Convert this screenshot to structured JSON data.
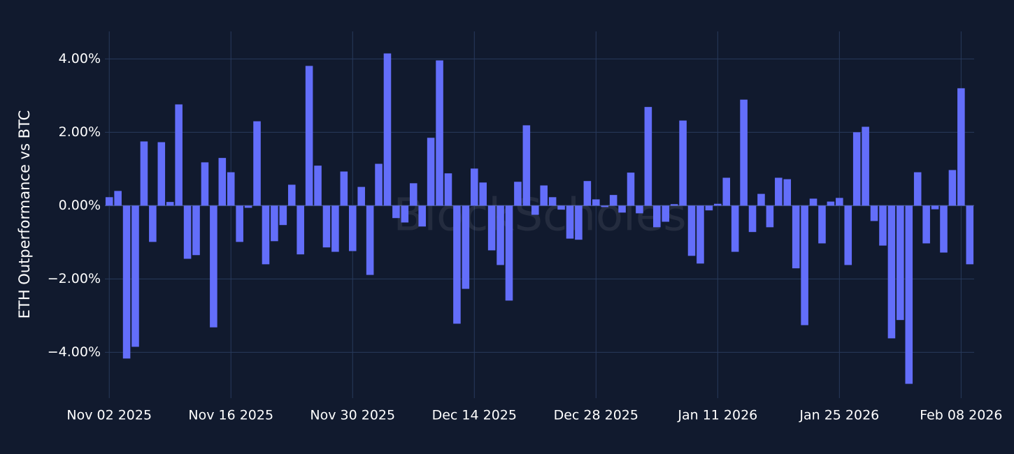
{
  "chart_data": {
    "type": "bar",
    "ylabel": "ETH Outperformance vs BTC",
    "watermark": "BlockScholes",
    "color": "#636efa",
    "grid": true,
    "x": [
      "2025-11-02",
      "2025-11-03",
      "2025-11-04",
      "2025-11-05",
      "2025-11-06",
      "2025-11-07",
      "2025-11-08",
      "2025-11-09",
      "2025-11-10",
      "2025-11-11",
      "2025-11-12",
      "2025-11-13",
      "2025-11-14",
      "2025-11-15",
      "2025-11-16",
      "2025-11-17",
      "2025-11-18",
      "2025-11-19",
      "2025-11-20",
      "2025-11-21",
      "2025-11-22",
      "2025-11-23",
      "2025-11-24",
      "2025-11-25",
      "2025-11-26",
      "2025-11-27",
      "2025-11-28",
      "2025-11-29",
      "2025-11-30",
      "2025-12-01",
      "2025-12-02",
      "2025-12-03",
      "2025-12-04",
      "2025-12-05",
      "2025-12-06",
      "2025-12-07",
      "2025-12-08",
      "2025-12-09",
      "2025-12-10",
      "2025-12-11",
      "2025-12-12",
      "2025-12-13",
      "2025-12-14",
      "2025-12-15",
      "2025-12-16",
      "2025-12-17",
      "2025-12-18",
      "2025-12-19",
      "2025-12-20",
      "2025-12-21",
      "2025-12-22",
      "2025-12-23",
      "2025-12-24",
      "2025-12-25",
      "2025-12-26",
      "2025-12-27",
      "2025-12-28",
      "2025-12-29",
      "2025-12-30",
      "2025-12-31",
      "2026-01-01",
      "2026-01-02",
      "2026-01-03",
      "2026-01-04",
      "2026-01-05",
      "2026-01-06",
      "2026-01-07",
      "2026-01-08",
      "2026-01-09",
      "2026-01-10",
      "2026-01-11",
      "2026-01-12",
      "2026-01-13",
      "2026-01-14",
      "2026-01-15",
      "2026-01-16",
      "2026-01-17",
      "2026-01-18",
      "2026-01-19",
      "2026-01-20",
      "2026-01-21",
      "2026-01-22",
      "2026-01-23",
      "2026-01-24",
      "2026-01-25",
      "2026-01-26",
      "2026-01-27",
      "2026-01-28",
      "2026-01-29",
      "2026-01-30",
      "2026-01-31",
      "2026-02-01",
      "2026-02-02",
      "2026-02-03",
      "2026-02-04",
      "2026-02-05",
      "2026-02-06",
      "2026-02-07",
      "2026-02-08",
      "2026-02-09"
    ],
    "values": [
      0.23,
      0.4,
      -4.17,
      -3.85,
      1.75,
      -0.99,
      1.73,
      0.1,
      2.76,
      -1.45,
      -1.35,
      1.18,
      -3.32,
      1.3,
      0.91,
      -0.99,
      -0.06,
      2.3,
      -1.6,
      -0.97,
      -0.53,
      0.57,
      -1.33,
      3.81,
      1.09,
      -1.14,
      -1.26,
      0.93,
      -1.24,
      0.51,
      -1.89,
      1.14,
      4.15,
      -0.34,
      -0.46,
      0.61,
      -0.57,
      1.85,
      3.96,
      0.88,
      -3.22,
      -2.27,
      1.01,
      0.63,
      -1.22,
      -1.62,
      -2.59,
      0.65,
      2.19,
      -0.25,
      0.55,
      0.23,
      -0.11,
      -0.9,
      -0.93,
      0.67,
      0.17,
      -0.04,
      0.29,
      -0.19,
      0.9,
      -0.21,
      2.69,
      -0.59,
      -0.44,
      0.04,
      2.32,
      -1.37,
      -1.58,
      -0.13,
      0.05,
      0.76,
      -1.26,
      2.89,
      -0.72,
      0.32,
      -0.59,
      0.76,
      0.72,
      -1.71,
      -3.26,
      0.19,
      -1.03,
      0.11,
      0.21,
      -1.62,
      2.0,
      2.15,
      -0.42,
      -1.09,
      -3.62,
      -3.12,
      -4.86,
      0.91,
      -1.03,
      -0.1,
      -1.28,
      0.97,
      3.2,
      -1.6
    ],
    "xlim": [
      "2025-11-01T12:00:00Z",
      "2026-02-09T12:00:00Z"
    ],
    "xticks": [
      {
        "value": "2025-11-02",
        "label": "Nov 02 2025"
      },
      {
        "value": "2025-11-16",
        "label": "Nov 16 2025"
      },
      {
        "value": "2025-11-30",
        "label": "Nov 30 2025"
      },
      {
        "value": "2025-12-14",
        "label": "Dec 14 2025"
      },
      {
        "value": "2025-12-28",
        "label": "Dec 28 2025"
      },
      {
        "value": "2026-01-11",
        "label": "Jan 11 2026"
      },
      {
        "value": "2026-01-25",
        "label": "Jan 25 2026"
      },
      {
        "value": "2026-02-08",
        "label": "Feb 08 2026"
      }
    ],
    "ylim": [
      -5.25,
      4.75
    ],
    "yticks": [
      {
        "value": -4,
        "label": "−4.00%"
      },
      {
        "value": -2,
        "label": "−2.00%"
      },
      {
        "value": 0,
        "label": "0.00%"
      },
      {
        "value": 2,
        "label": "2.00%"
      },
      {
        "value": 4,
        "label": "4.00%"
      }
    ]
  }
}
